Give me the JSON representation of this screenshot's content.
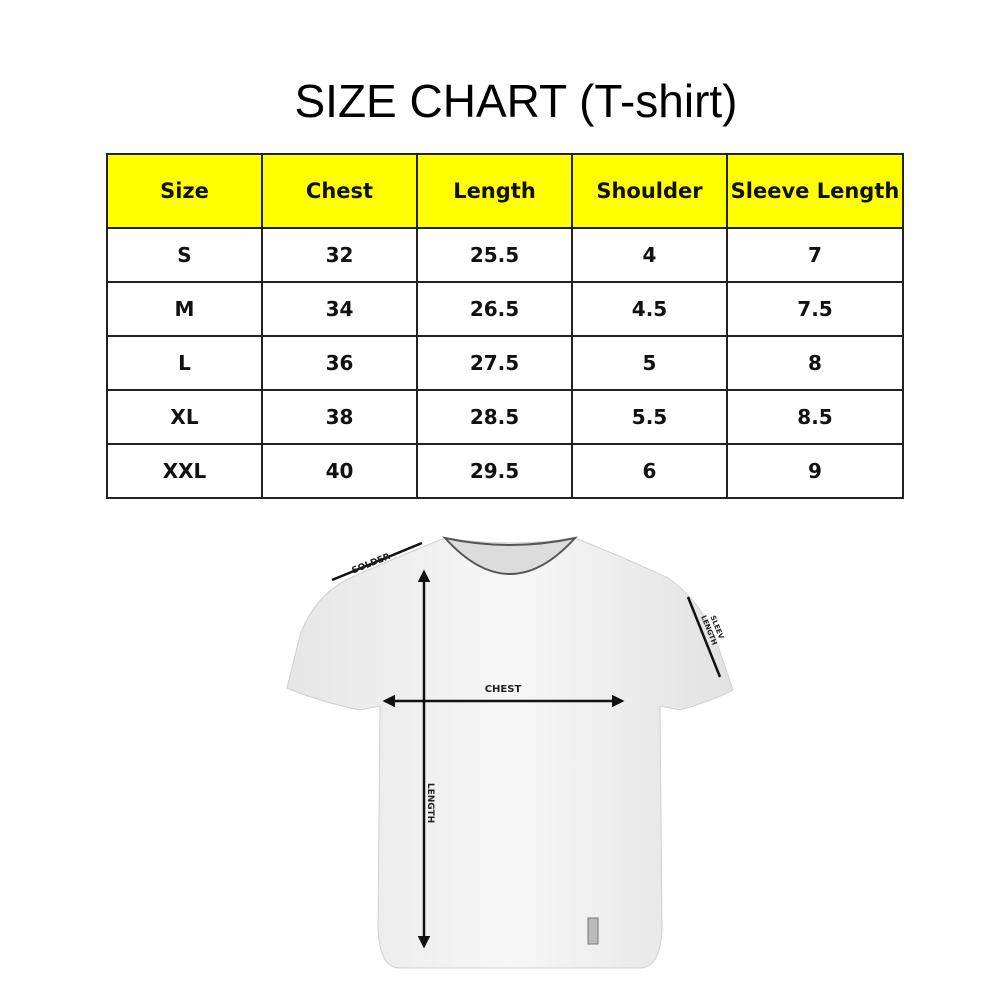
{
  "title": "SIZE CHART (T-shirt)",
  "table": {
    "header_color": "#ffff00",
    "headers": [
      "Size",
      "Chest",
      "Length",
      "Shoulder",
      "Sleeve Length"
    ],
    "rows": [
      [
        "S",
        "32",
        "25.5",
        "4",
        "7"
      ],
      [
        "M",
        "34",
        "26.5",
        "4.5",
        "7.5"
      ],
      [
        "L",
        "36",
        "27.5",
        "5",
        "8"
      ],
      [
        "XL",
        "38",
        "28.5",
        "5.5",
        "8.5"
      ],
      [
        "XXL",
        "40",
        "29.5",
        "6",
        "9"
      ]
    ]
  },
  "diagram": {
    "labels": {
      "shoulder": "SOLDER",
      "sleeve": "SLEEV LENGTH",
      "sleeve_line1": "SLEEV",
      "sleeve_line2": "LENGTH",
      "chest": "CHEST",
      "length": "LENGTH"
    }
  }
}
